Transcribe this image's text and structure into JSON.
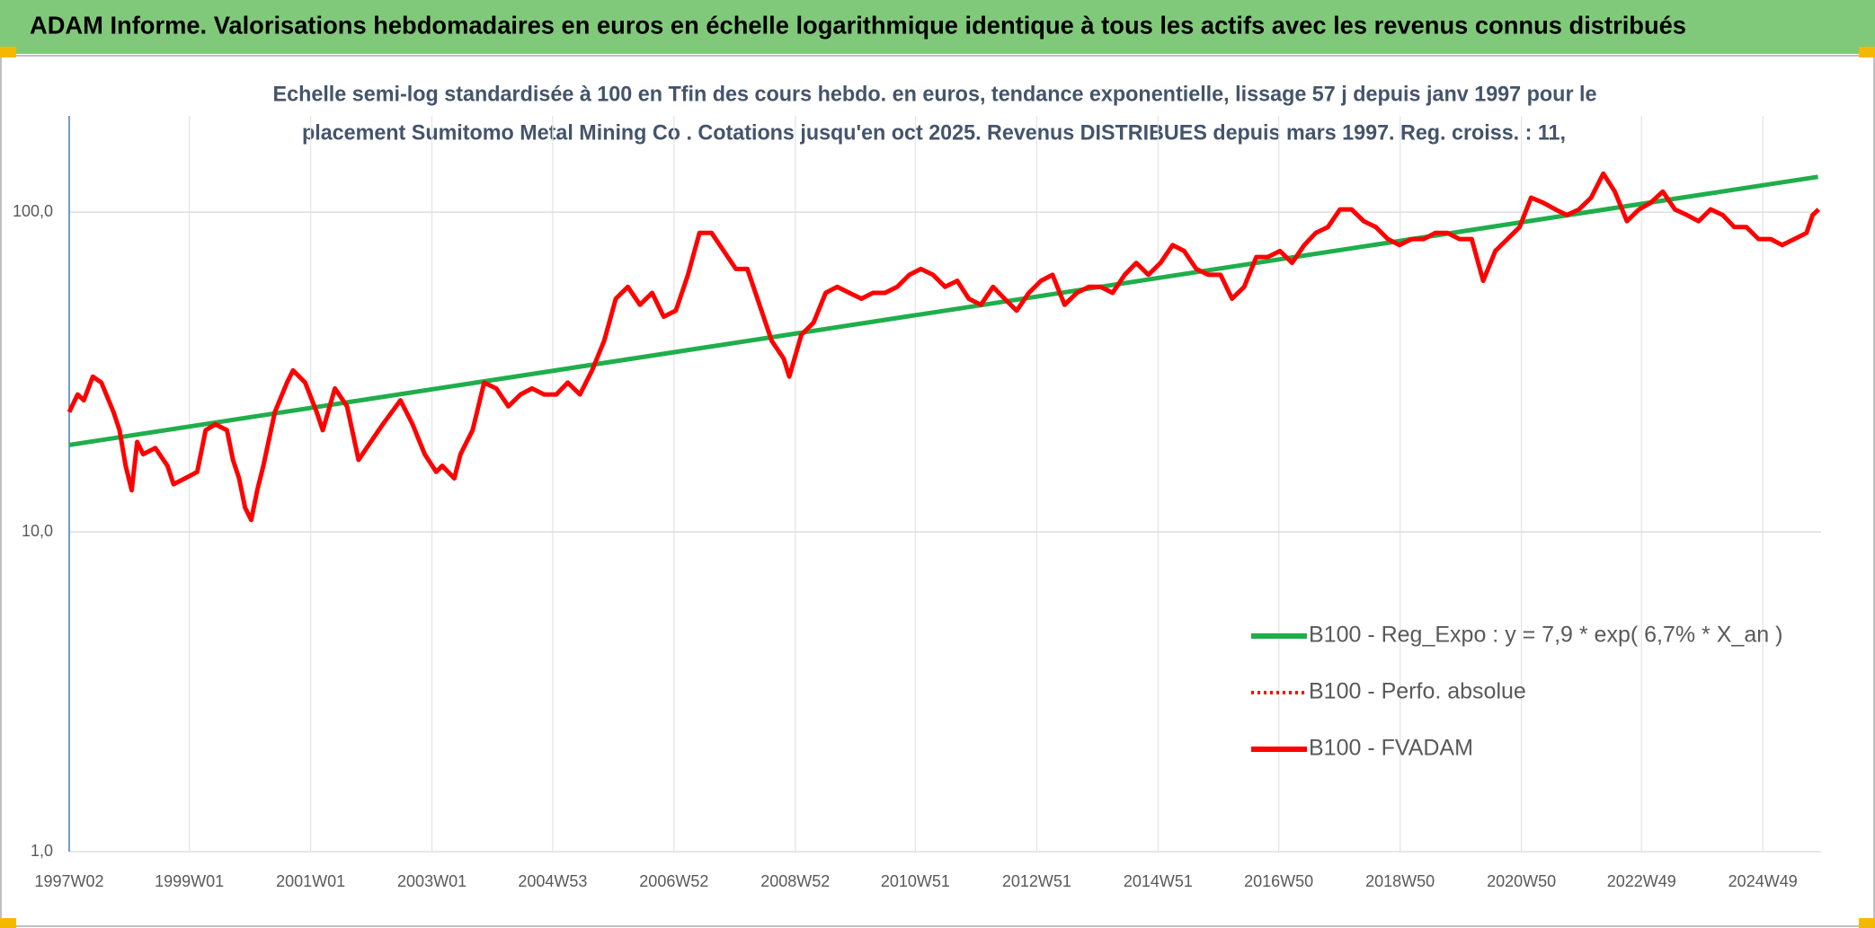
{
  "chart_data": {
    "type": "line",
    "title": "ADAM Informe. Valorisations hebdomadaires en euros en échelle logarithmique identique à tous les actifs avec les revenus connus distribués",
    "subtitle": [
      "Echelle semi-log standardisée à 100 en Tfin des cours hebdo. en euros, tendance exponentielle, lissage 57 j depuis janv 1997 pour le",
      "placement Sumitomo Metal Mining Co . Cotations jusqu'en oct 2025. Revenus DISTRIBUES depuis mars 1997. Reg. croiss. : 11,"
    ],
    "log_y": true,
    "grid": true,
    "legend": "lower right",
    "xlim": [
      1997.02,
      2025.9
    ],
    "xticks": [
      {
        "value": 1997.02,
        "label": "1997W02"
      },
      {
        "value": 1999.0,
        "label": "1999W01"
      },
      {
        "value": 2001.0,
        "label": "2001W01"
      },
      {
        "value": 2003.0,
        "label": "2003W01"
      },
      {
        "value": 2004.99,
        "label": "2004W53"
      },
      {
        "value": 2006.99,
        "label": "2006W52"
      },
      {
        "value": 2008.99,
        "label": "2008W52"
      },
      {
        "value": 2010.97,
        "label": "2010W51"
      },
      {
        "value": 2012.97,
        "label": "2012W51"
      },
      {
        "value": 2014.97,
        "label": "2014W51"
      },
      {
        "value": 2016.96,
        "label": "2016W50"
      },
      {
        "value": 2018.96,
        "label": "2018W50"
      },
      {
        "value": 2020.96,
        "label": "2020W50"
      },
      {
        "value": 2022.94,
        "label": "2022W49"
      },
      {
        "value": 2024.94,
        "label": "2024W49"
      }
    ],
    "ylim": [
      1,
      200
    ],
    "yticks": [
      {
        "value": 1,
        "label": "1,0"
      },
      {
        "value": 10,
        "label": "10,0"
      },
      {
        "value": 100,
        "label": "100,0"
      }
    ],
    "x": [
      1997.02,
      1997.16,
      1997.26,
      1997.41,
      1997.55,
      1997.75,
      1997.85,
      1997.95,
      1998.05,
      1998.14,
      1998.24,
      1998.44,
      1998.64,
      1998.74,
      1998.93,
      1999.13,
      1999.27,
      1999.43,
      1999.62,
      1999.72,
      1999.82,
      1999.92,
      2000.02,
      2000.12,
      2000.22,
      2000.41,
      2000.61,
      2000.71,
      2000.91,
      2001.1,
      2001.2,
      2001.4,
      2001.6,
      2001.79,
      2001.99,
      2002.19,
      2002.48,
      2002.68,
      2002.88,
      2003.07,
      2003.17,
      2003.37,
      2003.47,
      2003.67,
      2003.86,
      2004.06,
      2004.26,
      2004.46,
      2004.65,
      2004.85,
      2005.05,
      2005.24,
      2005.44,
      2005.64,
      2005.84,
      2006.03,
      2006.23,
      2006.43,
      2006.63,
      2006.82,
      2007.02,
      2007.22,
      2007.41,
      2007.61,
      2007.81,
      2008.01,
      2008.2,
      2008.4,
      2008.6,
      2008.8,
      2008.89,
      2009.09,
      2009.29,
      2009.49,
      2009.68,
      2009.88,
      2010.08,
      2010.27,
      2010.47,
      2010.67,
      2010.87,
      2011.06,
      2011.26,
      2011.46,
      2011.66,
      2011.85,
      2012.05,
      2012.25,
      2012.44,
      2012.64,
      2012.84,
      2013.04,
      2013.23,
      2013.43,
      2013.63,
      2013.83,
      2014.02,
      2014.22,
      2014.42,
      2014.61,
      2014.81,
      2015.01,
      2015.21,
      2015.4,
      2015.6,
      2015.8,
      2016.0,
      2016.19,
      2016.39,
      2016.59,
      2016.78,
      2016.98,
      2017.18,
      2017.38,
      2017.57,
      2017.77,
      2017.97,
      2018.16,
      2018.36,
      2018.56,
      2018.76,
      2018.95,
      2019.15,
      2019.35,
      2019.54,
      2019.74,
      2019.94,
      2020.14,
      2020.33,
      2020.53,
      2020.73,
      2020.93,
      2021.12,
      2021.32,
      2021.52,
      2021.71,
      2021.91,
      2022.11,
      2022.31,
      2022.5,
      2022.7,
      2022.9,
      2023.09,
      2023.29,
      2023.49,
      2023.69,
      2023.88,
      2024.08,
      2024.28,
      2024.47,
      2024.67,
      2024.87,
      2025.07,
      2025.26,
      2025.46,
      2025.66,
      2025.76,
      2025.86
    ],
    "series": [
      {
        "name": "B100 - Reg_Expo : y = 7,9 * exp( 6,7% *  X_an )",
        "color": "#1fae4b",
        "x": [
          1997.02,
          2025.85
        ],
        "values": [
          18.7,
          129
        ]
      },
      {
        "name": "B100 - Perfo. absolue",
        "color": "#ff0000",
        "dash": "dotted",
        "values": [
          23.7,
          26.9,
          25.8,
          30.6,
          29.3,
          23.7,
          20.8,
          16.1,
          13.5,
          19.1,
          17.5,
          18.3,
          16.1,
          14.1,
          14.7,
          15.4,
          20.8,
          21.7,
          20.8,
          16.8,
          14.7,
          11.9,
          10.9,
          13.5,
          16.1,
          23.7,
          29.3,
          32.0,
          29.3,
          23.7,
          20.8,
          28.1,
          24.7,
          16.8,
          19.1,
          21.7,
          25.8,
          21.7,
          17.5,
          15.4,
          16.1,
          14.7,
          17.5,
          20.8,
          29.3,
          28.1,
          24.7,
          26.9,
          28.1,
          26.9,
          26.9,
          29.3,
          26.9,
          32.0,
          39.6,
          53.6,
          58.4,
          51.3,
          55.9,
          47.1,
          49.2,
          63.7,
          86.1,
          86.1,
          75.6,
          66.4,
          66.4,
          51.3,
          39.6,
          34.8,
          30.6,
          41.4,
          45.1,
          55.9,
          58.4,
          55.9,
          53.6,
          55.9,
          55.9,
          58.4,
          63.7,
          66.4,
          63.7,
          58.4,
          61.0,
          53.6,
          51.3,
          58.4,
          53.6,
          49.2,
          55.9,
          61.0,
          63.7,
          51.3,
          55.9,
          58.4,
          58.4,
          55.9,
          63.7,
          69.4,
          63.7,
          69.4,
          78.9,
          75.6,
          66.4,
          63.7,
          63.7,
          53.6,
          58.4,
          72.4,
          72.4,
          75.6,
          69.4,
          78.9,
          86.1,
          89.8,
          102,
          102,
          93.7,
          89.8,
          82.4,
          78.9,
          82.4,
          82.4,
          86.1,
          86.1,
          82.4,
          82.4,
          61.0,
          75.6,
          82.4,
          89.8,
          111,
          107,
          102,
          97.9,
          102,
          111,
          132,
          116,
          93.7,
          102,
          107,
          116,
          102,
          97.9,
          93.7,
          102,
          97.9,
          89.8,
          89.8,
          82.4,
          82.4,
          78.9,
          82.4,
          86.1,
          97.9,
          102
        ]
      },
      {
        "name": "B100 - FVADAM",
        "color": "#ff0000",
        "values": [
          23.7,
          26.9,
          25.8,
          30.6,
          29.3,
          23.7,
          20.8,
          16.1,
          13.5,
          19.1,
          17.5,
          18.3,
          16.1,
          14.1,
          14.7,
          15.4,
          20.8,
          21.7,
          20.8,
          16.8,
          14.7,
          11.9,
          10.9,
          13.5,
          16.1,
          23.7,
          29.3,
          32.0,
          29.3,
          23.7,
          20.8,
          28.1,
          24.7,
          16.8,
          19.1,
          21.7,
          25.8,
          21.7,
          17.5,
          15.4,
          16.1,
          14.7,
          17.5,
          20.8,
          29.3,
          28.1,
          24.7,
          26.9,
          28.1,
          26.9,
          26.9,
          29.3,
          26.9,
          32.0,
          39.6,
          53.6,
          58.4,
          51.3,
          55.9,
          47.1,
          49.2,
          63.7,
          86.1,
          86.1,
          75.6,
          66.4,
          66.4,
          51.3,
          39.6,
          34.8,
          30.6,
          41.4,
          45.1,
          55.9,
          58.4,
          55.9,
          53.6,
          55.9,
          55.9,
          58.4,
          63.7,
          66.4,
          63.7,
          58.4,
          61.0,
          53.6,
          51.3,
          58.4,
          53.6,
          49.2,
          55.9,
          61.0,
          63.7,
          51.3,
          55.9,
          58.4,
          58.4,
          55.9,
          63.7,
          69.4,
          63.7,
          69.4,
          78.9,
          75.6,
          66.4,
          63.7,
          63.7,
          53.6,
          58.4,
          72.4,
          72.4,
          75.6,
          69.4,
          78.9,
          86.1,
          89.8,
          102,
          102,
          93.7,
          89.8,
          82.4,
          78.9,
          82.4,
          82.4,
          86.1,
          86.1,
          82.4,
          82.4,
          61.0,
          75.6,
          82.4,
          89.8,
          111,
          107,
          102,
          97.9,
          102,
          111,
          132,
          116,
          93.7,
          102,
          107,
          116,
          102,
          97.9,
          93.7,
          102,
          97.9,
          89.8,
          89.8,
          82.4,
          82.4,
          78.9,
          82.4,
          86.1,
          97.9,
          102
        ]
      }
    ]
  }
}
